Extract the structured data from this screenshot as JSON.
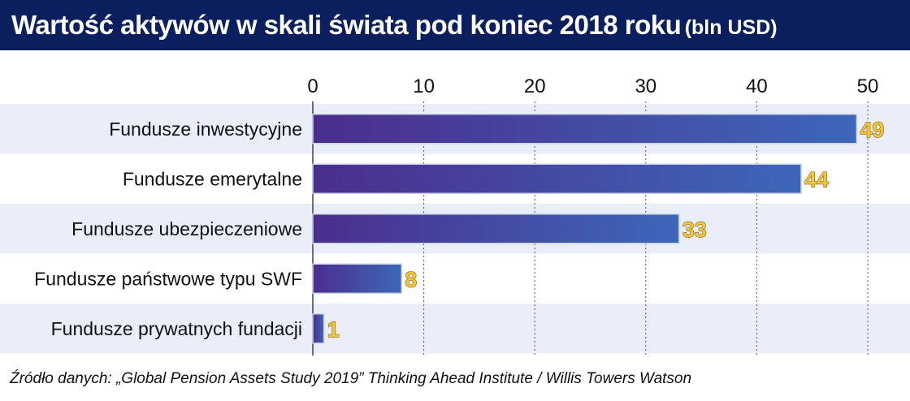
{
  "header": {
    "title": "Wartość aktywów w skali świata pod koniec 2018 roku",
    "unit": "(bln USD)"
  },
  "footer": {
    "source": "Źródło danych: „Global Pension Assets Study 2019” Thinking Ahead Institute / Willis Towers Watson"
  },
  "colors": {
    "header_bg": "#0b1f5e",
    "bar_start": "#4b2e8c",
    "bar_end": "#3d67b8",
    "stripe": "#e9eef8",
    "value_label_fill": "#f5c43a",
    "value_label_stroke": "#6b4c00"
  },
  "chart_data": {
    "type": "bar",
    "orientation": "horizontal",
    "categories": [
      "Fundusze inwestycyjne",
      "Fundusze emerytalne",
      "Fundusze ubezpieczeniowe",
      "Fundusze państwowe typu SWF",
      "Fundusze prywatnych fundacji"
    ],
    "values": [
      49,
      44,
      33,
      8,
      1
    ],
    "xlim": [
      0,
      50
    ],
    "xticks": [
      0,
      10,
      20,
      30,
      40,
      50
    ],
    "axis_position": "top",
    "grid": true,
    "data_labels": true
  }
}
